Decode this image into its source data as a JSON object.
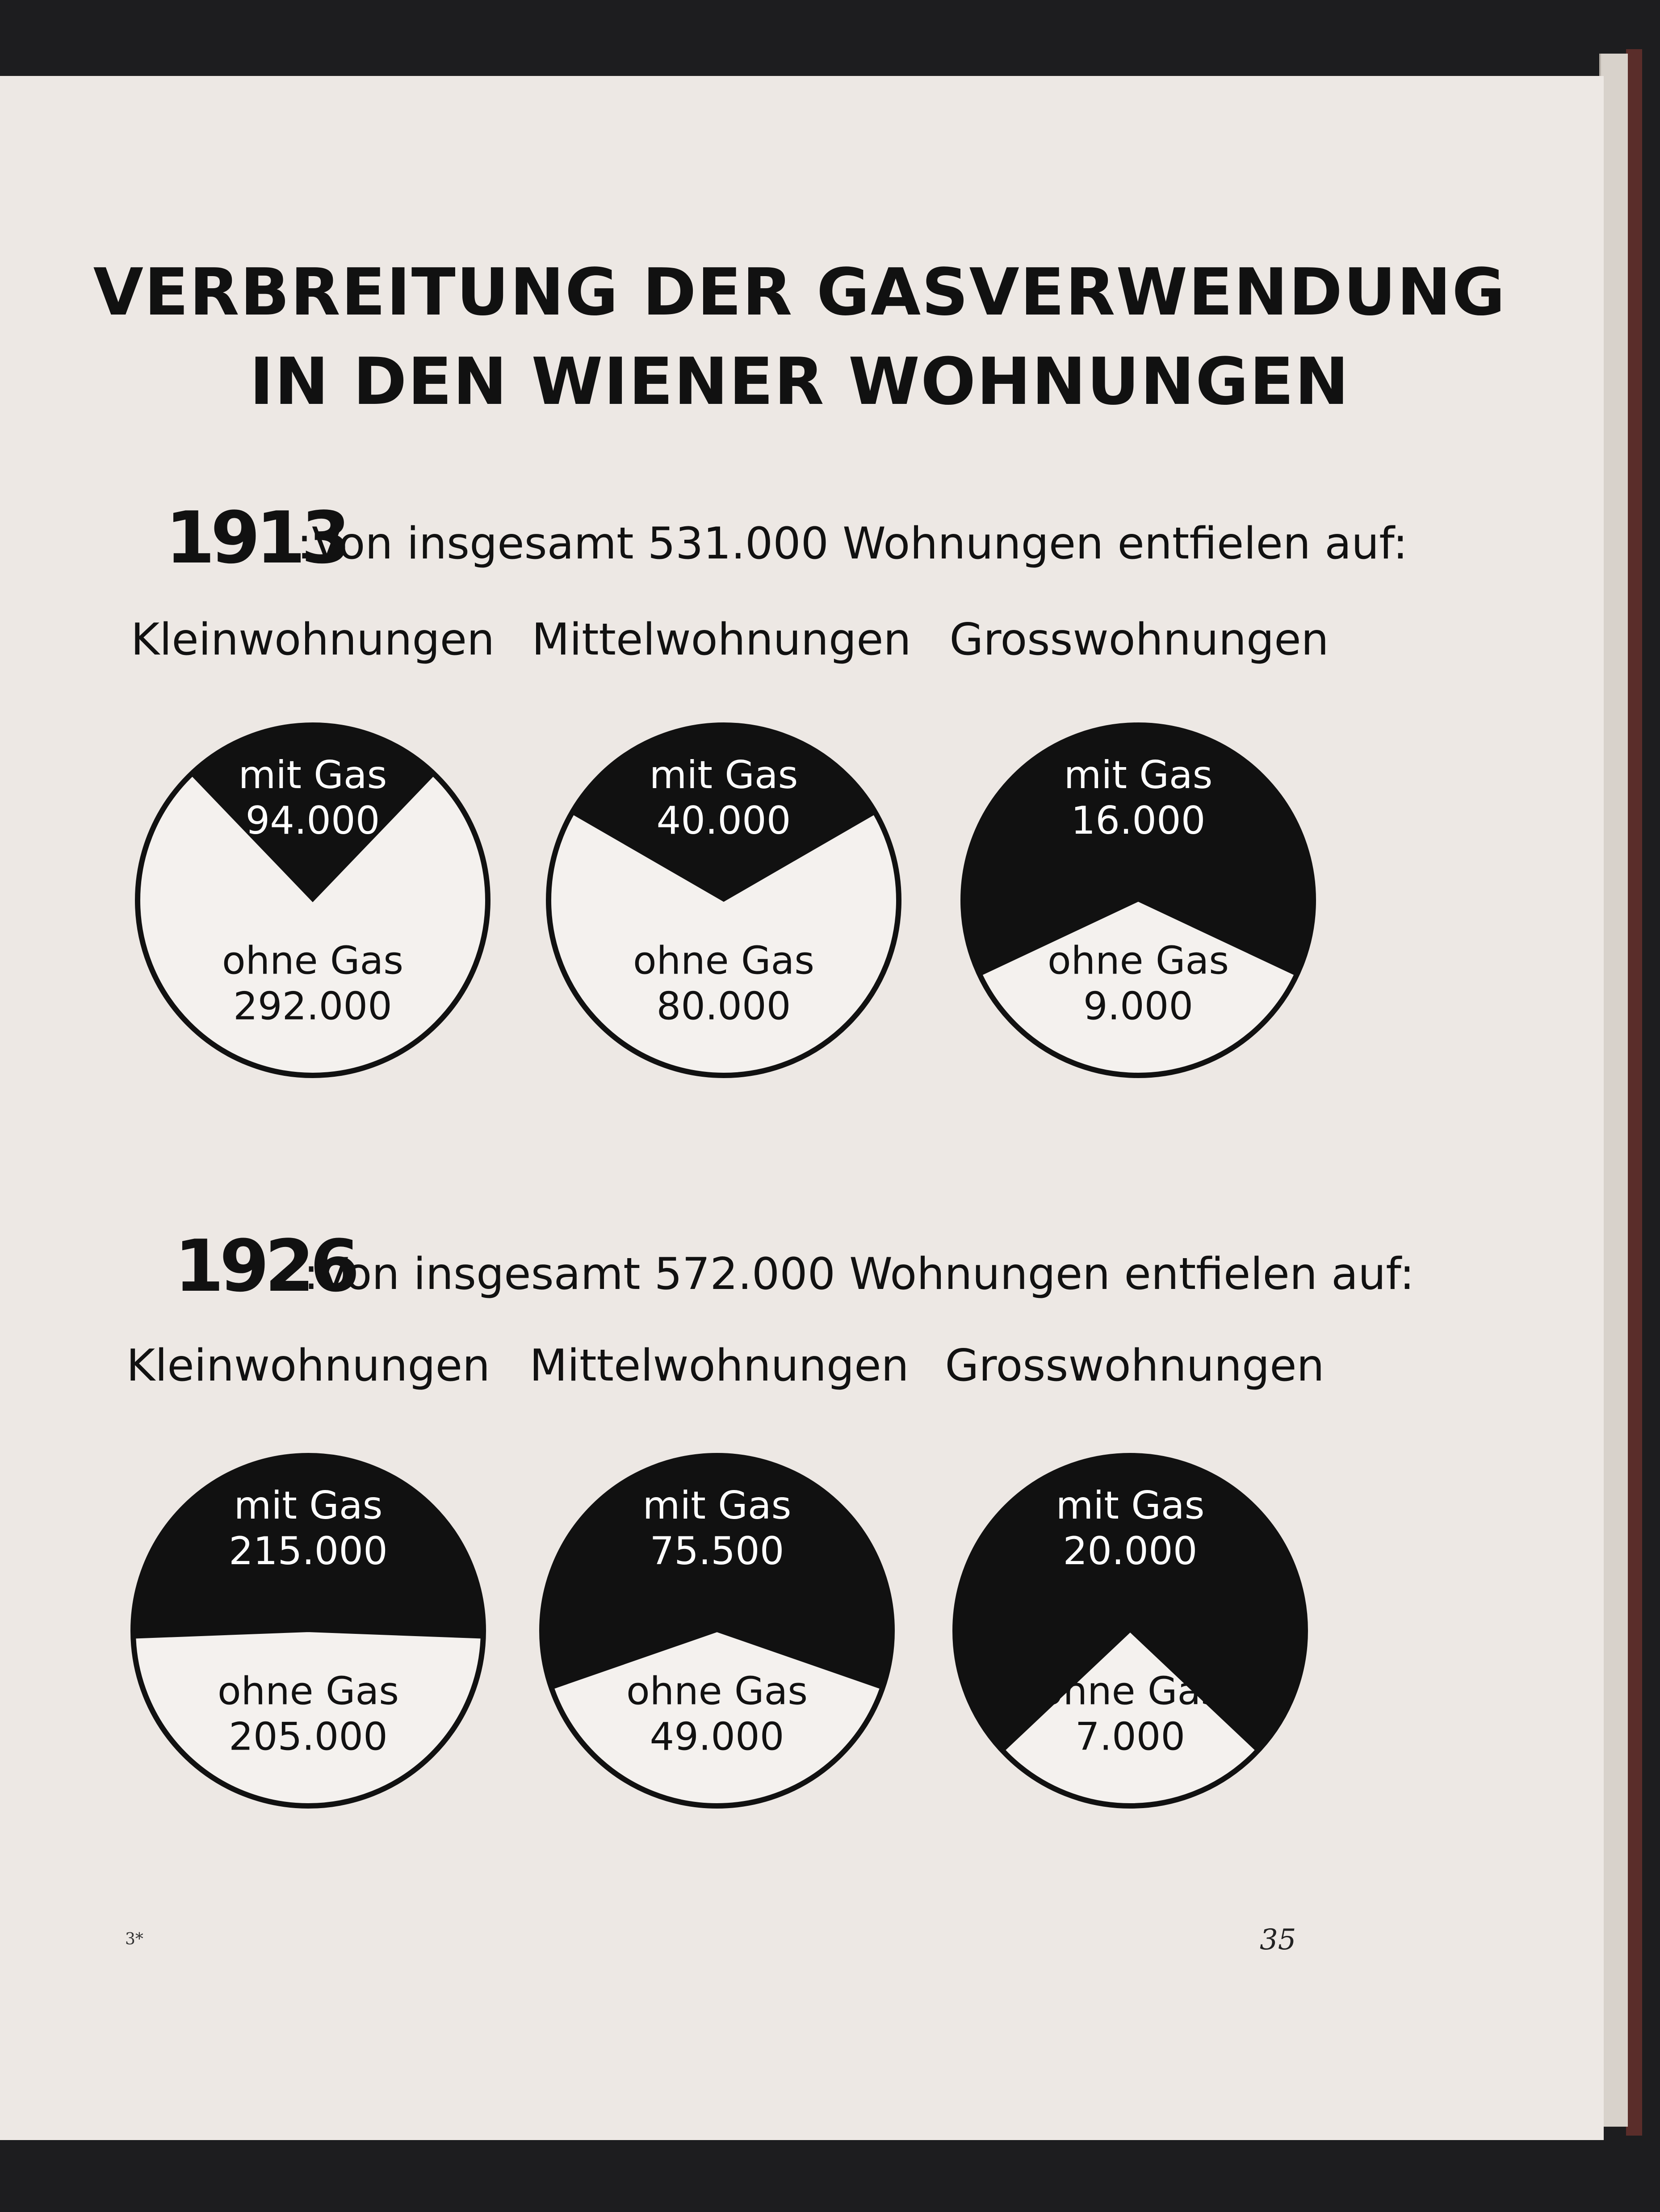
{
  "title_line1": "VERBREITUNG DER GASVERWENDUNG",
  "title_line2": "IN DEN WIENER WOHNUNGEN",
  "page_number": "35",
  "signature": "3*",
  "chart_data": [
    {
      "type": "pie",
      "year": "1913",
      "intro": ":Von insgesamt 531.000 Wohnungen entfielen auf:",
      "groups": [
        {
          "category": "Kleinwohnungen",
          "with_label": "mit Gas",
          "with_value": 94000,
          "with_text": "94.000",
          "without_label": "ohne Gas",
          "without_value": 292000,
          "without_text": "292.000"
        },
        {
          "category": "Mittelwohnungen",
          "with_label": "mit Gas",
          "with_value": 40000,
          "with_text": "40.000",
          "without_label": "ohne Gas",
          "without_value": 80000,
          "without_text": "80.000"
        },
        {
          "category": "Grosswohnungen",
          "with_label": "mit Gas",
          "with_value": 16000,
          "with_text": "16.000",
          "without_label": "ohne Gas",
          "without_value": 9000,
          "without_text": "9.000"
        }
      ]
    },
    {
      "type": "pie",
      "year": "1926",
      "intro": ":Von insgesamt 572.000 Wohnungen entfielen auf:",
      "groups": [
        {
          "category": "Kleinwohnungen",
          "with_label": "mit Gas",
          "with_value": 215000,
          "with_text": "215.000",
          "without_label": "ohne Gas",
          "without_value": 205000,
          "without_text": "205.000"
        },
        {
          "category": "Mittelwohnungen",
          "with_label": "mit Gas",
          "with_value": 75500,
          "with_text": "75.500",
          "without_label": "ohne Gas",
          "without_value": 49000,
          "without_text": "49.000"
        },
        {
          "category": "Grosswohnungen",
          "with_label": "mit Gas",
          "with_value": 20000,
          "with_text": "20.000",
          "without_label": "ohne Gas",
          "without_value": 7000,
          "without_text": "7.000"
        }
      ]
    }
  ]
}
